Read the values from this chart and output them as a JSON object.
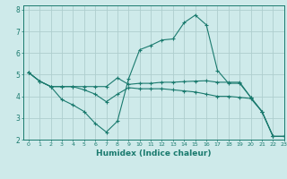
{
  "xlabel": "Humidex (Indice chaleur)",
  "xlim": [
    -0.5,
    23
  ],
  "ylim": [
    2,
    8.2
  ],
  "yticks": [
    2,
    3,
    4,
    5,
    6,
    7,
    8
  ],
  "xticks": [
    0,
    1,
    2,
    3,
    4,
    5,
    6,
    7,
    8,
    9,
    10,
    11,
    12,
    13,
    14,
    15,
    16,
    17,
    18,
    19,
    20,
    21,
    22,
    23
  ],
  "background_color": "#ceeaea",
  "grid_color": "#aecece",
  "line_color": "#1a7a6e",
  "series1_x": [
    0,
    1,
    2,
    3,
    4,
    5,
    6,
    7,
    8,
    9,
    10,
    11,
    12,
    13,
    14,
    15,
    16,
    17,
    18,
    19,
    20,
    21,
    22,
    23
  ],
  "series1_y": [
    5.1,
    4.7,
    4.45,
    3.85,
    3.6,
    3.3,
    2.75,
    2.35,
    2.85,
    4.8,
    6.15,
    6.35,
    6.6,
    6.65,
    7.4,
    7.75,
    7.3,
    5.2,
    4.6,
    4.6,
    3.95,
    3.3,
    2.15,
    2.15
  ],
  "series2_x": [
    0,
    1,
    2,
    3,
    4,
    5,
    6,
    7,
    8,
    9,
    10,
    11,
    12,
    13,
    14,
    15,
    16,
    17,
    18,
    19,
    20,
    21,
    22,
    23
  ],
  "series2_y": [
    5.1,
    4.7,
    4.45,
    4.45,
    4.45,
    4.45,
    4.45,
    4.45,
    4.85,
    4.55,
    4.6,
    4.6,
    4.65,
    4.65,
    4.68,
    4.7,
    4.72,
    4.65,
    4.65,
    4.65,
    3.95,
    3.3,
    2.15,
    2.15
  ],
  "series3_x": [
    0,
    1,
    2,
    3,
    4,
    5,
    6,
    7,
    8,
    9,
    10,
    11,
    12,
    13,
    14,
    15,
    16,
    17,
    18,
    19,
    20,
    21,
    22,
    23
  ],
  "series3_y": [
    5.1,
    4.7,
    4.45,
    4.45,
    4.45,
    4.3,
    4.1,
    3.75,
    4.1,
    4.4,
    4.35,
    4.35,
    4.35,
    4.3,
    4.25,
    4.2,
    4.1,
    4.0,
    4.0,
    3.95,
    3.9,
    3.3,
    2.15,
    2.15
  ]
}
